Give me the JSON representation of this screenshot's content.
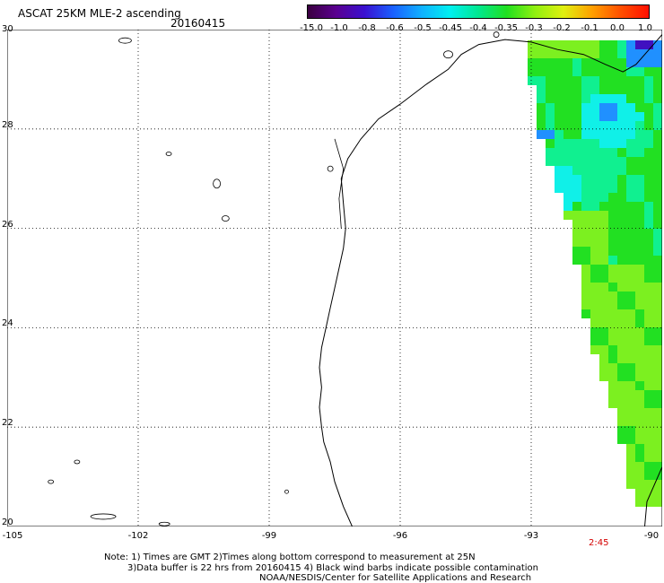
{
  "header": {
    "title": "ASCAT 25KM MLE-2 ascending",
    "date": "20160415"
  },
  "colorbar": {
    "labels": [
      "-15.0",
      "-1.0",
      "-0.8",
      "-0.6",
      "-0.5",
      "-0.45",
      "-0.4",
      "-0.35",
      "-0.3",
      "-0.2",
      "-0.1",
      "0.0",
      "1.0"
    ],
    "colors": [
      "#3a0040",
      "#5a0090",
      "#3a10d0",
      "#1a60ff",
      "#10b0ff",
      "#00f0f0",
      "#00e890",
      "#20e020",
      "#90f010",
      "#e0f010",
      "#ffa000",
      "#ff5000",
      "#ff1000"
    ]
  },
  "map": {
    "lon_range": [
      -105,
      -90
    ],
    "lat_range": [
      20,
      30
    ],
    "x_ticks": [
      "-105",
      "-102",
      "-99",
      "-96",
      "-93",
      "-90"
    ],
    "y_ticks": [
      "30",
      "28",
      "26",
      "24",
      "22",
      "20"
    ],
    "time_label": "2:45",
    "swath_colors": {
      "green": "#22e022",
      "light_green": "#7cf020",
      "aqua_green": "#10f090",
      "cyan": "#10f0e8",
      "blue": "#2090ff",
      "violet": "#4010c0"
    }
  },
  "footer": {
    "line1": "Note: 1) Times are GMT 2)Times along bottom correspond to measurement at 25N",
    "line2": "3)Data buffer is 22 hrs from 20160415 4) Black wind barbs indicate possible contamination",
    "line3": "NOAA/NESDIS/Center for Satellite Applications and Research"
  }
}
